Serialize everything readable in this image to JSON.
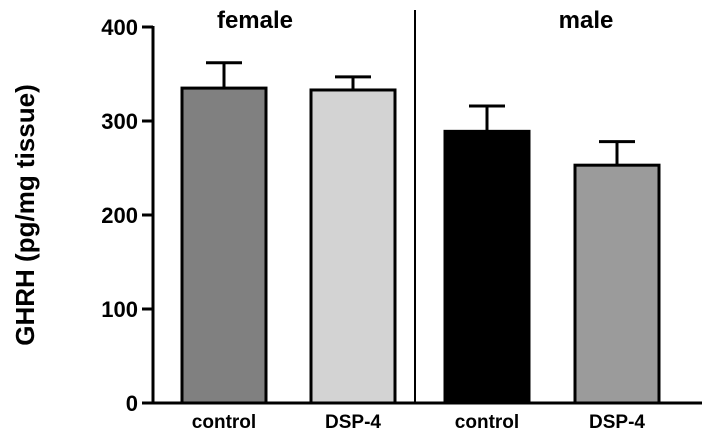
{
  "chart_data": {
    "type": "bar",
    "title": "",
    "ylabel": "GHRH (pg/mg tissue)",
    "xlabel": "",
    "ylim": [
      0,
      400
    ],
    "yticks": [
      0,
      100,
      200,
      300,
      400
    ],
    "groups": [
      {
        "label": "female",
        "bars": [
          {
            "category": "control",
            "value": 335,
            "error": 27,
            "color": "#808080"
          },
          {
            "category": "DSP-4",
            "value": 333,
            "error": 14,
            "color": "#d3d3d3"
          }
        ]
      },
      {
        "label": "male",
        "bars": [
          {
            "category": "control",
            "value": 289,
            "error": 27,
            "color": "#000000"
          },
          {
            "category": "DSP-4",
            "value": 253,
            "error": 25,
            "color": "#9b9b9b"
          }
        ]
      }
    ],
    "grid": false,
    "legend": "none"
  }
}
